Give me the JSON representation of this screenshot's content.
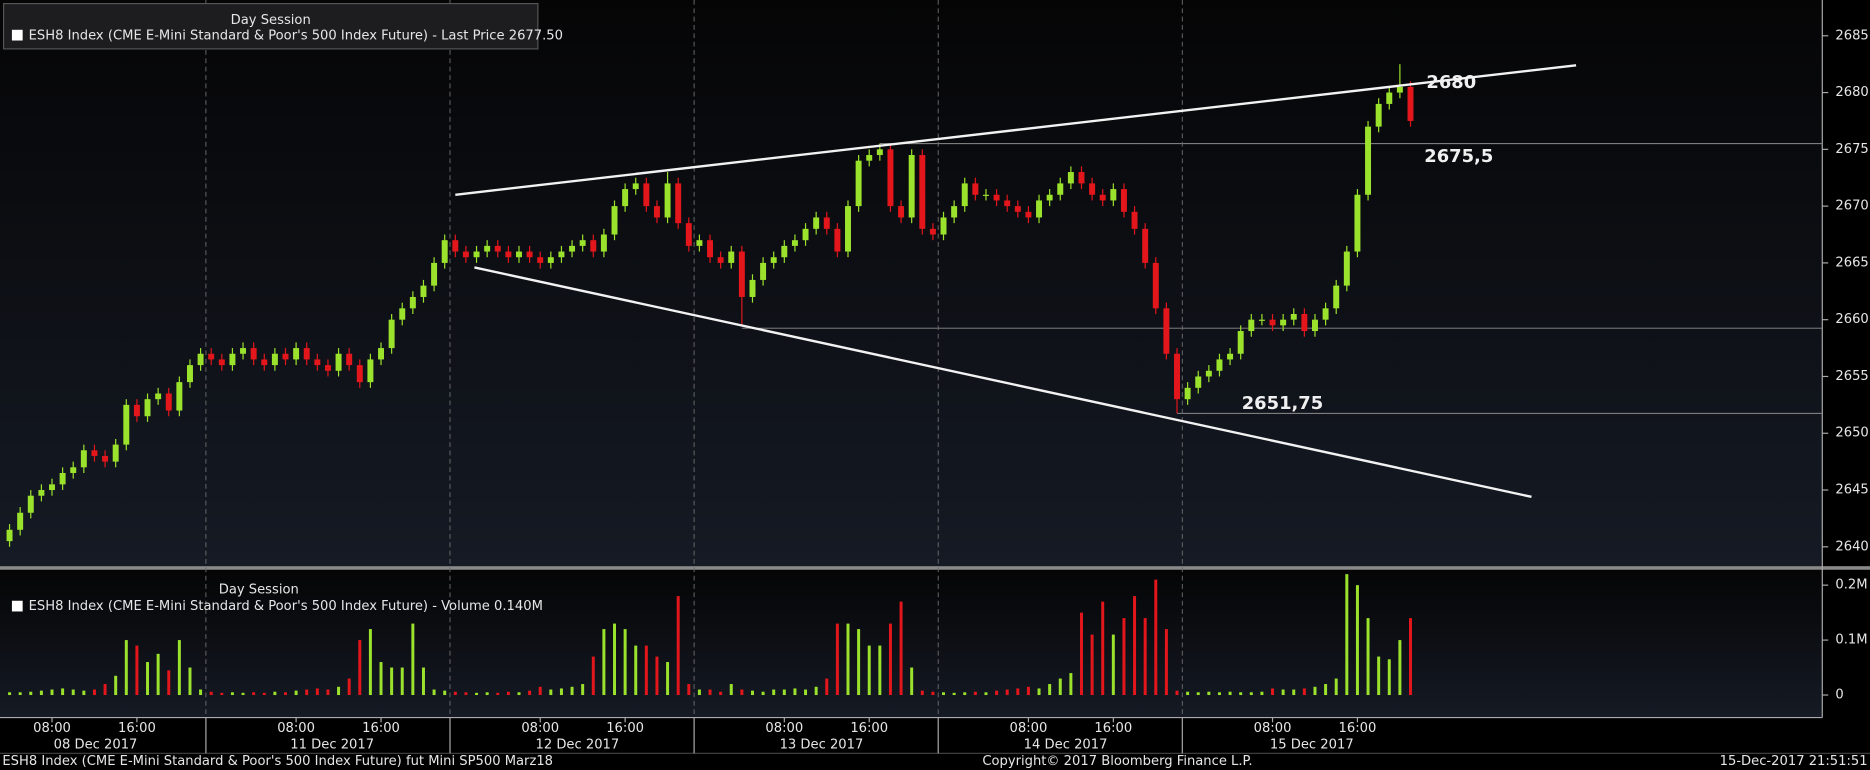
{
  "chart_data": [
    {
      "type": "candlestick",
      "legend_title": "Day Session",
      "legend_text": "ESH8 Index (CME E-Mini Standard & Poor's 500 Index Future) - Last Price 2677.50",
      "up_color": "#9be22d",
      "down_color": "#e3161c",
      "xlim": [
        -0.9,
        170.8
      ],
      "ylim": [
        2638.4,
        2688.15
      ],
      "yticks": [
        2640,
        2645,
        2650,
        2655,
        2660,
        2665,
        2670,
        2675,
        2680,
        2685
      ],
      "open": [
        2640.5,
        2641.5,
        2643,
        2644.5,
        2645,
        2645.5,
        2646.5,
        2647,
        2648.5,
        2648,
        2647.5,
        2649,
        2652.5,
        2651.5,
        2653,
        2653.5,
        2652,
        2654.5,
        2656,
        2657,
        2656.5,
        2656,
        2657,
        2657.5,
        2656.5,
        2656,
        2657,
        2656.5,
        2657.5,
        2656.5,
        2656,
        2655.5,
        2657,
        2656,
        2654.5,
        2656.5,
        2657.5,
        2660,
        2661,
        2662,
        2663,
        2665,
        2667,
        2666,
        2665.5,
        2666,
        2666.5,
        2666,
        2665.5,
        2666,
        2665.5,
        2665,
        2665.5,
        2666,
        2666.5,
        2667,
        2666,
        2667.5,
        2670,
        2671.5,
        2672,
        2670,
        2669,
        2672,
        2668.5,
        2666.5,
        2667,
        2665.5,
        2665,
        2666,
        2662,
        2663.5,
        2665,
        2665.5,
        2666.5,
        2667,
        2668,
        2669,
        2668,
        2666,
        2670,
        2674,
        2674.5,
        2675,
        2670,
        2669,
        2674.5,
        2668,
        2667.5,
        2669,
        2670,
        2672,
        2671,
        2671,
        2670.5,
        2670,
        2669.5,
        2669,
        2670.5,
        2671,
        2672,
        2673,
        2672,
        2671,
        2670.5,
        2671.5,
        2669.5,
        2668,
        2665,
        2661,
        2657,
        2653,
        2654,
        2655,
        2655.5,
        2656.5,
        2657,
        2659,
        2660,
        2660,
        2659.5,
        2660,
        2660.5,
        2659,
        2660,
        2661,
        2663,
        2666,
        2671,
        2677,
        2679,
        2680,
        2680.5
      ],
      "high": [
        2642,
        2643.5,
        2645,
        2645.5,
        2646,
        2647,
        2647.5,
        2649,
        2649,
        2648.5,
        2649.5,
        2653,
        2653,
        2653.5,
        2654,
        2654,
        2655,
        2656.5,
        2657.5,
        2657.5,
        2657,
        2657.5,
        2658,
        2658,
        2657,
        2657.5,
        2657.5,
        2658,
        2658,
        2657,
        2656.5,
        2657.5,
        2657.5,
        2656.5,
        2657,
        2658,
        2660.5,
        2661.5,
        2662.5,
        2663.5,
        2665.5,
        2667.5,
        2667.5,
        2666.5,
        2666.5,
        2667,
        2667,
        2666.5,
        2666.5,
        2666.5,
        2666,
        2666,
        2666.5,
        2667,
        2667.5,
        2667.5,
        2668,
        2670.5,
        2672,
        2672.5,
        2672.5,
        2670.5,
        2673,
        2672.5,
        2669,
        2667.5,
        2667.5,
        2666,
        2666.5,
        2666.5,
        2664,
        2665.5,
        2666,
        2667,
        2667.5,
        2668.5,
        2669.5,
        2669.5,
        2668.5,
        2670.5,
        2674.5,
        2675,
        2675.5,
        2675.5,
        2670.5,
        2675,
        2675,
        2668.5,
        2669.5,
        2670.5,
        2672.5,
        2672.5,
        2671.5,
        2671.5,
        2671,
        2670.5,
        2670,
        2671,
        2671.5,
        2672.5,
        2673.5,
        2673.5,
        2672.5,
        2671.5,
        2672,
        2672,
        2670,
        2668.5,
        2665.5,
        2661.5,
        2657.5,
        2654.5,
        2655.5,
        2656,
        2657,
        2657.5,
        2659.5,
        2660.5,
        2660.5,
        2660.5,
        2660.5,
        2661,
        2661,
        2660.5,
        2661.5,
        2663.5,
        2666.5,
        2671.5,
        2677.5,
        2679.5,
        2680.5,
        2682.5,
        2681
      ],
      "low": [
        2640,
        2641,
        2642.5,
        2644,
        2644.5,
        2645,
        2646,
        2646.5,
        2647.5,
        2647,
        2647,
        2648.5,
        2651,
        2651,
        2652.5,
        2651.5,
        2651.5,
        2654,
        2655.5,
        2656,
        2655.5,
        2655.5,
        2656.5,
        2656,
        2655.5,
        2655.5,
        2656,
        2656,
        2656,
        2655.5,
        2655,
        2655,
        2655.5,
        2654,
        2654,
        2656,
        2657,
        2659.5,
        2660.5,
        2661.5,
        2662.5,
        2664.5,
        2665.5,
        2665,
        2665,
        2665.5,
        2665.5,
        2665,
        2665,
        2665,
        2664.5,
        2664.5,
        2665,
        2665.5,
        2666,
        2665.5,
        2665.5,
        2667,
        2669.5,
        2671,
        2669.5,
        2668.5,
        2668.5,
        2668,
        2666,
        2666,
        2665,
        2664.5,
        2664.5,
        2659.5,
        2661.5,
        2663,
        2664.5,
        2665,
        2666,
        2666.5,
        2667.5,
        2667.5,
        2665.5,
        2665.5,
        2669.5,
        2673.5,
        2674,
        2669.5,
        2668.5,
        2668.5,
        2667.5,
        2667,
        2667,
        2668.5,
        2669.5,
        2670.5,
        2670.5,
        2670,
        2669.5,
        2669,
        2668.5,
        2668.5,
        2670,
        2670.5,
        2671.5,
        2671.5,
        2670.5,
        2670,
        2670,
        2669,
        2667.5,
        2664.5,
        2660.5,
        2656.5,
        2651.75,
        2652.5,
        2653.5,
        2654.5,
        2655,
        2656,
        2656.5,
        2658.5,
        2659.5,
        2659,
        2659,
        2659.5,
        2658.5,
        2658.5,
        2659.5,
        2660.5,
        2662.5,
        2665.5,
        2670.5,
        2676.5,
        2678.5,
        2679.5,
        2677
      ],
      "close": [
        2641.5,
        2643,
        2644.5,
        2645,
        2645.5,
        2646.5,
        2647,
        2648.5,
        2648,
        2647.5,
        2649,
        2652.5,
        2651.5,
        2653,
        2653.5,
        2652,
        2654.5,
        2656,
        2657,
        2656.5,
        2656,
        2657,
        2657.5,
        2656.5,
        2656,
        2657,
        2656.5,
        2657.5,
        2656.5,
        2656,
        2655.5,
        2657,
        2656,
        2654.5,
        2656.5,
        2657.5,
        2660,
        2661,
        2662,
        2663,
        2665,
        2667,
        2666,
        2665.5,
        2666,
        2666.5,
        2666,
        2665.5,
        2666,
        2665.5,
        2665,
        2665.5,
        2666,
        2666.5,
        2667,
        2666,
        2667.5,
        2670,
        2671.5,
        2672,
        2670,
        2669,
        2672,
        2668.5,
        2666.5,
        2667,
        2665.5,
        2665,
        2666,
        2662,
        2663.5,
        2665,
        2665.5,
        2666.5,
        2667,
        2668,
        2669,
        2668,
        2666,
        2670,
        2674,
        2674.5,
        2675,
        2670,
        2669,
        2674.5,
        2668,
        2667.5,
        2669,
        2670,
        2672,
        2671,
        2671,
        2670.5,
        2670,
        2669.5,
        2669,
        2670.5,
        2671,
        2672,
        2673,
        2672,
        2671,
        2670.5,
        2671.5,
        2669.5,
        2668,
        2665,
        2661,
        2657,
        2653,
        2654,
        2655,
        2655.5,
        2656.5,
        2657,
        2659,
        2660,
        2660,
        2659.5,
        2660,
        2660.5,
        2659,
        2660,
        2661,
        2663,
        2666,
        2671,
        2677,
        2679,
        2680,
        2680.5,
        2677.5
      ],
      "trendlines": [
        {
          "x": [
            42,
            147.6
          ],
          "y": [
            2671,
            2682.4
          ]
        },
        {
          "x": [
            43.8,
            143.4
          ],
          "y": [
            2664.6,
            2644.4
          ]
        }
      ],
      "levels": [
        {
          "value": 2675.5,
          "from": 82
        },
        {
          "value": 2659.25,
          "from": 69
        },
        {
          "value": 2651.75,
          "from": 110
        }
      ],
      "annotations": [
        {
          "label": "2680",
          "value": 2680,
          "x": 133.5,
          "anchor": "above"
        },
        {
          "label": "2675,5",
          "value": 2675.5,
          "x": 133.3,
          "anchor": "below"
        },
        {
          "label": "2651,75",
          "value": 2651.75,
          "x": 116.1,
          "anchor": "above"
        }
      ]
    },
    {
      "type": "bar",
      "legend_title": "Day Session",
      "legend_text": "ESH8 Index (CME E-Mini Standard & Poor's 500 Index Future) - Volume 0.140M",
      "xlim": [
        -0.9,
        170.8
      ],
      "ylim": [
        -0.041,
        0.228
      ],
      "yticks": [
        0,
        {
          "value": 0.1,
          "label": "0.1M"
        },
        {
          "value": 0.2,
          "label": "0.2M"
        }
      ],
      "values": [
        0.005,
        0.005,
        0.006,
        0.008,
        0.01,
        0.012,
        0.01,
        0.008,
        0.01,
        0.02,
        0.035,
        0.1,
        0.09,
        0.06,
        0.075,
        0.045,
        0.1,
        0.05,
        0.01,
        0.006,
        0.004,
        0.005,
        0.004,
        0.005,
        0.004,
        0.006,
        0.005,
        0.008,
        0.01,
        0.012,
        0.01,
        0.015,
        0.03,
        0.1,
        0.12,
        0.06,
        0.05,
        0.05,
        0.13,
        0.05,
        0.01,
        0.008,
        0.006,
        0.005,
        0.004,
        0.005,
        0.004,
        0.006,
        0.005,
        0.008,
        0.015,
        0.01,
        0.012,
        0.015,
        0.02,
        0.07,
        0.12,
        0.13,
        0.12,
        0.09,
        0.09,
        0.07,
        0.06,
        0.18,
        0.02,
        0.01,
        0.01,
        0.006,
        0.02,
        0.01,
        0.008,
        0.006,
        0.01,
        0.01,
        0.012,
        0.01,
        0.015,
        0.03,
        0.13,
        0.13,
        0.12,
        0.09,
        0.09,
        0.13,
        0.17,
        0.05,
        0.008,
        0.006,
        0.005,
        0.004,
        0.005,
        0.006,
        0.005,
        0.008,
        0.01,
        0.012,
        0.015,
        0.012,
        0.02,
        0.03,
        0.04,
        0.15,
        0.11,
        0.17,
        0.11,
        0.14,
        0.18,
        0.14,
        0.21,
        0.12,
        0.008,
        0.006,
        0.005,
        0.006,
        0.005,
        0.006,
        0.005,
        0.005,
        0.006,
        0.012,
        0.01,
        0.01,
        0.012,
        0.015,
        0.02,
        0.03,
        0.22,
        0.2,
        0.14,
        0.07,
        0.065,
        0.1,
        0.14
      ],
      "xticks": [
        {
          "value": 4,
          "label": "08:00"
        },
        {
          "value": 12,
          "label": "16:00"
        },
        {
          "value": 27,
          "label": "08:00"
        },
        {
          "value": 35,
          "label": "16:00"
        },
        {
          "value": 50,
          "label": "08:00"
        },
        {
          "value": 58,
          "label": "16:00"
        },
        {
          "value": 73,
          "label": "08:00"
        },
        {
          "value": 81,
          "label": "16:00"
        },
        {
          "value": 96,
          "label": "08:00"
        },
        {
          "value": 104,
          "label": "16:00"
        },
        {
          "value": 119,
          "label": "08:00"
        },
        {
          "value": 127,
          "label": "16:00"
        }
      ],
      "date_labels": [
        {
          "value": 8.1,
          "label": "08 Dec 2017"
        },
        {
          "value": 30.4,
          "label": "11 Dec 2017"
        },
        {
          "value": 53.5,
          "label": "12 Dec 2017"
        },
        {
          "value": 76.5,
          "label": "13 Dec 2017"
        },
        {
          "value": 99.5,
          "label": "14 Dec 2017"
        },
        {
          "value": 122.7,
          "label": "15 Dec 2017"
        }
      ],
      "session_breaks": [
        18.5,
        41.5,
        64.5,
        87.5,
        110.5
      ]
    }
  ],
  "footer": {
    "left": "ESH8 Index (CME E-Mini Standard & Poor's 500 Index Future) fut Mini SP500 Marz18",
    "center": "Copyright© 2017 Bloomberg Finance L.P.",
    "right": "15-Dec-2017 21:51:51"
  }
}
